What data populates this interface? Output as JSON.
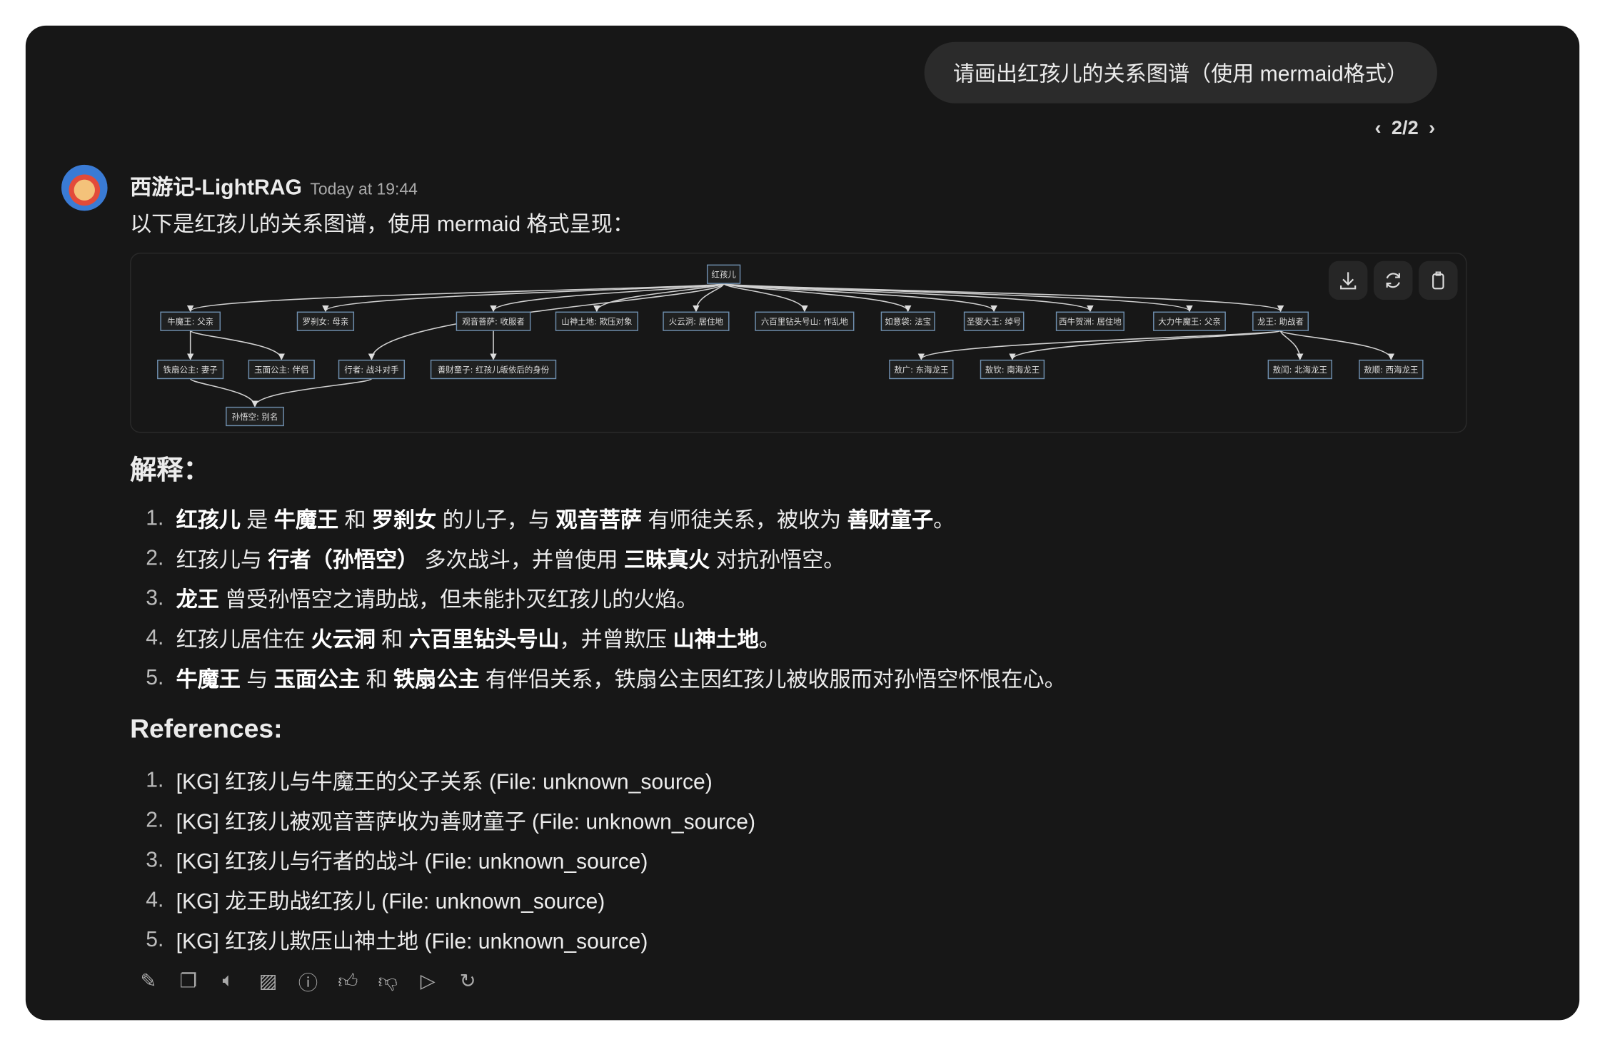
{
  "user_message": "请画出红孩儿的关系图谱（使用 mermaid格式）",
  "pager": "2/2",
  "assistant": {
    "name": "西游记-LightRAG",
    "time": "Today at 19:44",
    "intro": "以下是红孩儿的关系图谱，使用 mermaid 格式呈现："
  },
  "diagram": {
    "nodes": [
      "红孩儿",
      "牛魔王: 父亲",
      "罗刹女: 母亲",
      "观音菩萨: 收服者",
      "山神土地: 欺压对象",
      "火云洞: 居住地",
      "六百里钻头号山: 作乱地",
      "如意袋: 法宝",
      "圣婴大王: 绰号",
      "西牛贺洲: 居住地",
      "大力牛魔王: 父亲",
      "龙王: 助战者",
      "铁扇公主: 妻子",
      "玉面公主: 伴侣",
      "行者: 战斗对手",
      "善财童子: 红孩儿皈依后的身份",
      "敖广: 东海龙王",
      "敖钦: 南海龙王",
      "敖闰: 北海龙王",
      "敖顺: 西海龙王",
      "孙悟空: 别名"
    ],
    "edges": [
      [
        0,
        1
      ],
      [
        0,
        2
      ],
      [
        0,
        14
      ],
      [
        0,
        3
      ],
      [
        0,
        4
      ],
      [
        0,
        5
      ],
      [
        0,
        6
      ],
      [
        0,
        7
      ],
      [
        0,
        8
      ],
      [
        0,
        9
      ],
      [
        0,
        10
      ],
      [
        0,
        11
      ],
      [
        1,
        12
      ],
      [
        1,
        13
      ],
      [
        3,
        15
      ],
      [
        12,
        20
      ],
      [
        14,
        20
      ],
      [
        11,
        16
      ],
      [
        11,
        17
      ],
      [
        11,
        18
      ],
      [
        11,
        19
      ]
    ],
    "buttons": [
      "download-icon",
      "refresh-icon",
      "clipboard-icon"
    ]
  },
  "explanation_title": "解释：",
  "explanation": [
    [
      {
        "t": "红孩儿",
        "b": true
      },
      {
        "t": " 是 "
      },
      {
        "t": "牛魔王",
        "b": true
      },
      {
        "t": " 和 "
      },
      {
        "t": "罗刹女",
        "b": true
      },
      {
        "t": " 的儿子，与 "
      },
      {
        "t": "观音菩萨",
        "b": true
      },
      {
        "t": " 有师徒关系，被收为 "
      },
      {
        "t": "善财童子",
        "b": true
      },
      {
        "t": "。"
      }
    ],
    [
      {
        "t": "红孩儿与 "
      },
      {
        "t": "行者（孙悟空）",
        "b": true
      },
      {
        "t": " 多次战斗，并曾使用 "
      },
      {
        "t": "三昧真火",
        "b": true
      },
      {
        "t": " 对抗孙悟空。"
      }
    ],
    [
      {
        "t": "龙王",
        "b": true
      },
      {
        "t": " 曾受孙悟空之请助战，但未能扑灭红孩儿的火焰。"
      }
    ],
    [
      {
        "t": "红孩儿居住在 "
      },
      {
        "t": "火云洞",
        "b": true
      },
      {
        "t": " 和 "
      },
      {
        "t": "六百里钻头号山",
        "b": true
      },
      {
        "t": "，并曾欺压 "
      },
      {
        "t": "山神土地",
        "b": true
      },
      {
        "t": "。"
      }
    ],
    [
      {
        "t": "牛魔王",
        "b": true
      },
      {
        "t": " 与 "
      },
      {
        "t": "玉面公主",
        "b": true
      },
      {
        "t": " 和 "
      },
      {
        "t": "铁扇公主",
        "b": true
      },
      {
        "t": " 有伴侣关系，铁扇公主因红孩儿被收服而对孙悟空怀恨在心。"
      }
    ]
  ],
  "references_title": "References:",
  "references": [
    "[KG] 红孩儿与牛魔王的父子关系 (File: unknown_source)",
    "[KG] 红孩儿被观音菩萨收为善财童子 (File: unknown_source)",
    "[KG] 红孩儿与行者的战斗 (File: unknown_source)",
    "[KG] 龙王助战红孩儿 (File: unknown_source)",
    "[KG] 红孩儿欺压山神土地 (File: unknown_source)"
  ],
  "actions": [
    "edit-icon",
    "copy-icon",
    "read-aloud-icon",
    "image-icon",
    "info-icon",
    "thumbs-up-icon",
    "thumbs-down-icon",
    "play-icon",
    "regenerate-icon"
  ]
}
